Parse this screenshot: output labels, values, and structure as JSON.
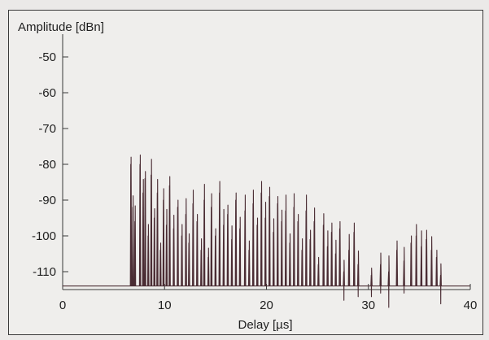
{
  "chart_data": {
    "type": "line",
    "ylabel": "Amplitude [dBn]",
    "xlabel": "Delay [µs]",
    "xlim": [
      0,
      40
    ],
    "ylim": [
      -115,
      -45
    ],
    "x_ticks": [
      0,
      10,
      20,
      30,
      40
    ],
    "y_ticks": [
      -50,
      -60,
      -70,
      -80,
      -90,
      -100,
      -110
    ],
    "noise_floor": -114,
    "grid": false,
    "line_color": "#4a2c33",
    "peaks": [
      {
        "x": 6.7,
        "y": -80
      },
      {
        "x": 6.9,
        "y": -92
      },
      {
        "x": 7.1,
        "y": -96
      },
      {
        "x": 7.6,
        "y": -80
      },
      {
        "x": 7.9,
        "y": -88
      },
      {
        "x": 8.1,
        "y": -84
      },
      {
        "x": 8.4,
        "y": -100
      },
      {
        "x": 8.7,
        "y": -83
      },
      {
        "x": 9.0,
        "y": -95
      },
      {
        "x": 9.3,
        "y": -88
      },
      {
        "x": 9.6,
        "y": -104
      },
      {
        "x": 9.9,
        "y": -90
      },
      {
        "x": 10.2,
        "y": -97
      },
      {
        "x": 10.5,
        "y": -86
      },
      {
        "x": 10.9,
        "y": -98
      },
      {
        "x": 11.3,
        "y": -92
      },
      {
        "x": 11.7,
        "y": -100
      },
      {
        "x": 12.1,
        "y": -94
      },
      {
        "x": 12.4,
        "y": -102
      },
      {
        "x": 12.8,
        "y": -91
      },
      {
        "x": 13.2,
        "y": -96
      },
      {
        "x": 13.6,
        "y": -104
      },
      {
        "x": 13.9,
        "y": -90
      },
      {
        "x": 14.3,
        "y": -106
      },
      {
        "x": 14.6,
        "y": -92
      },
      {
        "x": 15.0,
        "y": -100
      },
      {
        "x": 15.4,
        "y": -88
      },
      {
        "x": 15.8,
        "y": -97
      },
      {
        "x": 16.2,
        "y": -94
      },
      {
        "x": 16.6,
        "y": -101
      },
      {
        "x": 17.0,
        "y": -90
      },
      {
        "x": 17.4,
        "y": -98
      },
      {
        "x": 17.9,
        "y": -93
      },
      {
        "x": 18.3,
        "y": -104
      },
      {
        "x": 18.7,
        "y": -91
      },
      {
        "x": 19.1,
        "y": -97
      },
      {
        "x": 19.5,
        "y": -88
      },
      {
        "x": 19.9,
        "y": -95
      },
      {
        "x": 20.3,
        "y": -89
      },
      {
        "x": 20.7,
        "y": -99
      },
      {
        "x": 21.1,
        "y": -91
      },
      {
        "x": 21.5,
        "y": -96
      },
      {
        "x": 21.9,
        "y": -93
      },
      {
        "x": 22.3,
        "y": -102
      },
      {
        "x": 22.7,
        "y": -92
      },
      {
        "x": 23.1,
        "y": -96
      },
      {
        "x": 23.5,
        "y": -104
      },
      {
        "x": 23.9,
        "y": -93
      },
      {
        "x": 24.3,
        "y": -101
      },
      {
        "x": 24.7,
        "y": -96
      },
      {
        "x": 25.1,
        "y": -108
      },
      {
        "x": 25.6,
        "y": -97
      },
      {
        "x": 26.0,
        "y": -103
      },
      {
        "x": 26.4,
        "y": -99
      },
      {
        "x": 26.8,
        "y": -105
      },
      {
        "x": 27.2,
        "y": -98
      },
      {
        "x": 27.6,
        "y": -110
      },
      {
        "x": 28.1,
        "y": -104
      },
      {
        "x": 28.6,
        "y": -99
      },
      {
        "x": 29.0,
        "y": -108
      },
      {
        "x": 30.3,
        "y": -111
      },
      {
        "x": 31.2,
        "y": -108
      },
      {
        "x": 32.0,
        "y": -110
      },
      {
        "x": 32.8,
        "y": -104
      },
      {
        "x": 33.5,
        "y": -107
      },
      {
        "x": 34.2,
        "y": -102
      },
      {
        "x": 34.7,
        "y": -100
      },
      {
        "x": 35.2,
        "y": -103
      },
      {
        "x": 35.7,
        "y": -101
      },
      {
        "x": 36.2,
        "y": -104
      },
      {
        "x": 36.7,
        "y": -106
      },
      {
        "x": 37.1,
        "y": -111
      }
    ]
  }
}
